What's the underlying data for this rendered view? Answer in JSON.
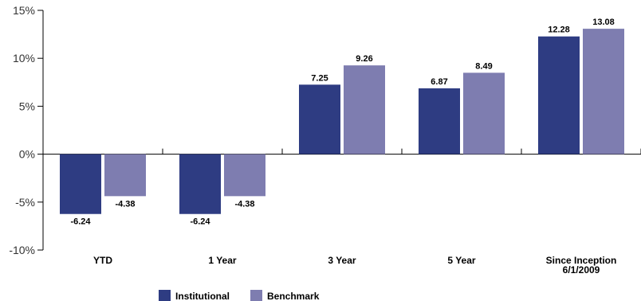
{
  "chart_data": {
    "type": "bar",
    "categories": [
      [
        "YTD"
      ],
      [
        "1 Year"
      ],
      [
        "3 Year"
      ],
      [
        "5 Year"
      ],
      [
        "Since Inception",
        "6/1/2009"
      ]
    ],
    "series": [
      {
        "name": "Institutional",
        "color": "#2e3c82",
        "values": [
          -6.24,
          -6.24,
          7.25,
          6.87,
          12.28
        ]
      },
      {
        "name": "Benchmark",
        "color": "#7e7db0",
        "values": [
          -4.38,
          -4.38,
          9.26,
          8.49,
          13.08
        ]
      }
    ],
    "ylim": [
      -10,
      15
    ],
    "yticks": [
      15,
      10,
      5,
      0,
      -5,
      -10
    ],
    "ytick_labels": [
      "15%",
      "10%",
      "5%",
      "0%",
      "-5%",
      "-10%"
    ],
    "legend_position": "bottom-left",
    "grid": false
  }
}
